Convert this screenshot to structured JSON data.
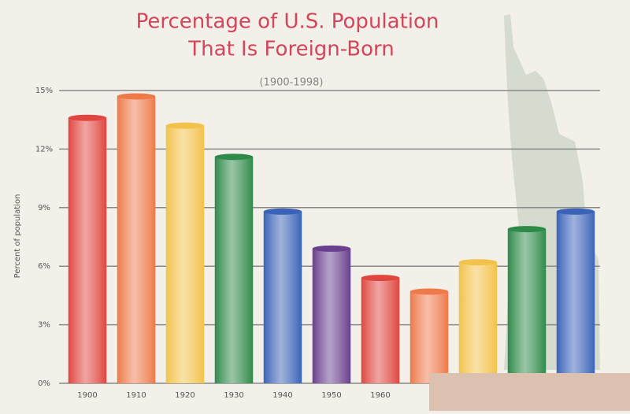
{
  "chart_data": {
    "type": "bar",
    "title": [
      "Percentage of U.S. Population",
      "That Is Foreign-Born"
    ],
    "subtitle": "(1900-1998)",
    "y_label": "Percent of population",
    "categories": [
      "1900",
      "1910",
      "1920",
      "1930",
      "1940",
      "1950",
      "1960",
      null,
      null,
      null,
      null
    ],
    "values": [
      13.6,
      14.7,
      13.2,
      11.6,
      8.8,
      6.9,
      5.4,
      4.7,
      6.2,
      7.9,
      8.8
    ],
    "colors": [
      "#e0463f",
      "#ee7a4a",
      "#f2c24a",
      "#2f8a4a",
      "#3a63b8",
      "#6a3f8e",
      "#e0463f",
      "#ee7a4a",
      "#f2c24a",
      "#2f8a4a",
      "#3a63b8"
    ],
    "ylim": [
      0,
      15
    ],
    "yticks": [
      {
        "value": 0,
        "label": "0%"
      },
      {
        "value": 3,
        "label": "3%"
      },
      {
        "value": 6,
        "label": "6%"
      },
      {
        "value": 9,
        "label": "9%"
      },
      {
        "value": 12,
        "label": "12%"
      },
      {
        "value": 15,
        "label": "15%"
      }
    ],
    "grid": true
  }
}
